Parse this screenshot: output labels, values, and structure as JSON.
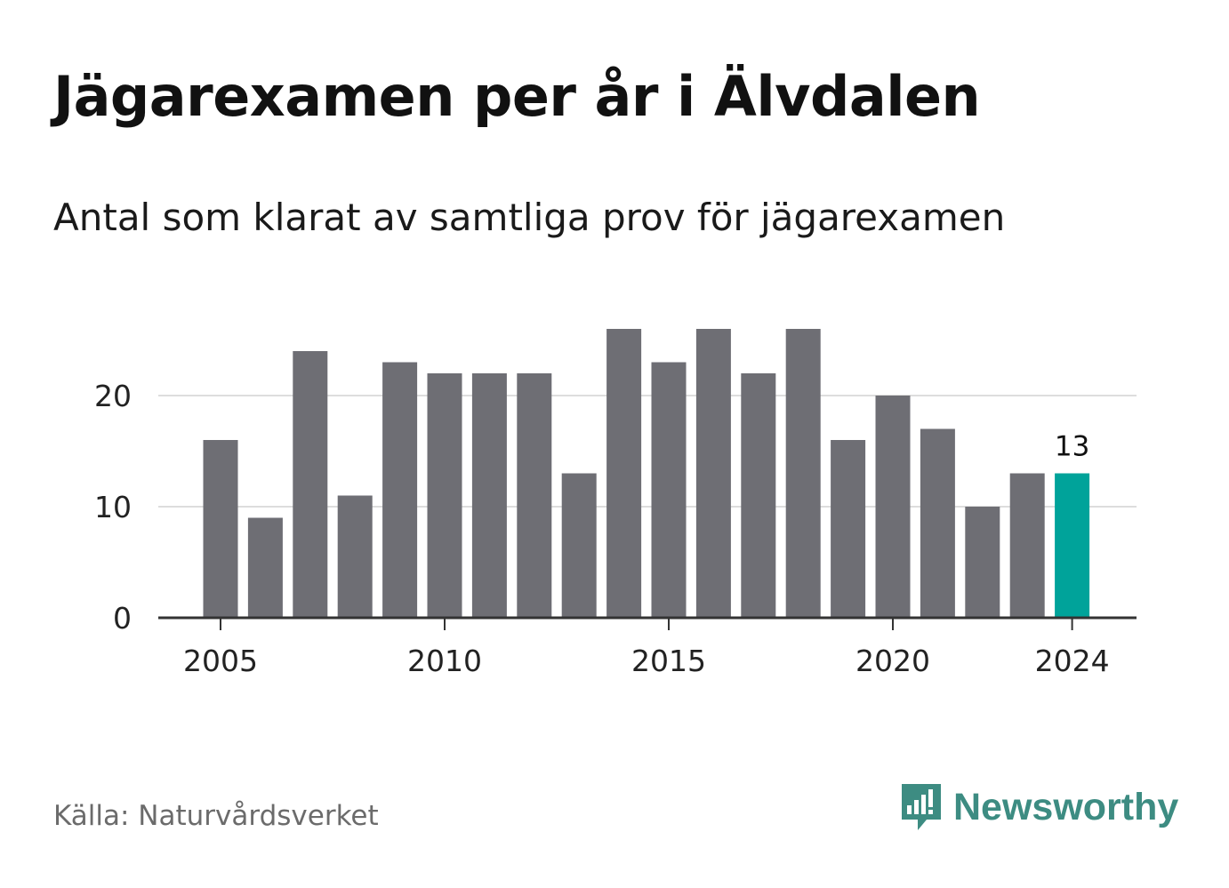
{
  "title": "Jägarexamen per år i Älvdalen",
  "subtitle": "Antal som klarat av samtliga prov för jägarexamen",
  "source": "Källa: Naturvårdsverket",
  "brand": {
    "name": "Newsworthy",
    "icon": "newsworthy-logo-icon",
    "color": "#3d8c82"
  },
  "chart_data": {
    "type": "bar",
    "x": [
      2005,
      2006,
      2007,
      2008,
      2009,
      2010,
      2011,
      2012,
      2013,
      2014,
      2015,
      2016,
      2017,
      2018,
      2019,
      2020,
      2021,
      2022,
      2023,
      2024
    ],
    "values": [
      16,
      9,
      24,
      11,
      23,
      22,
      22,
      22,
      13,
      26,
      23,
      26,
      22,
      26,
      16,
      20,
      17,
      10,
      13,
      13
    ],
    "x_ticks": [
      2005,
      2010,
      2015,
      2020,
      2024
    ],
    "y_ticks": [
      0,
      10,
      20
    ],
    "ylim": [
      0,
      26
    ],
    "xlabel": "",
    "ylabel": "",
    "grid": true,
    "bar_color": "#6e6e74",
    "highlight_color": "#00a39a",
    "highlight_index": 19,
    "annotations": [
      {
        "x": 2024,
        "text": "13"
      }
    ]
  }
}
